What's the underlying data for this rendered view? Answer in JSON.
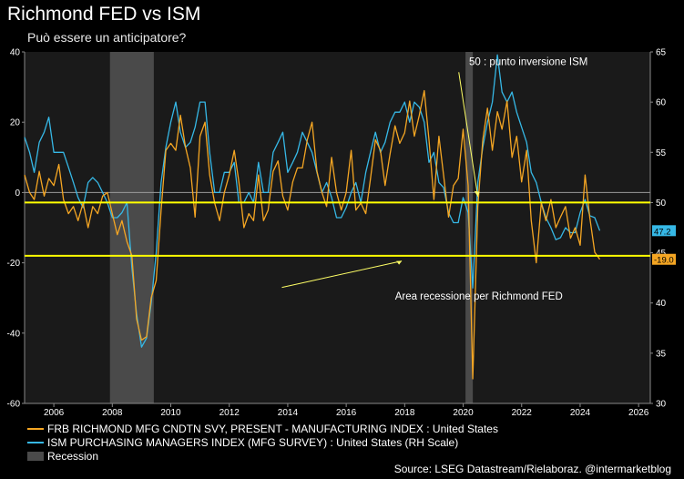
{
  "header": {
    "title": "Richmond FED vs ISM",
    "subtitle": "Può essere un anticipatore?"
  },
  "source": "Source: LSEG Datastream/Rielaboraz. @intermarketblog",
  "colors": {
    "background": "#000000",
    "plot_background": "#1a1a1a",
    "richmond": "#f5a623",
    "ism": "#36b8e6",
    "recession": "#4a4a4a",
    "reference_lines": "#ffff00",
    "grid": "#3a3a3a"
  },
  "chart_data": {
    "type": "line",
    "title": "Richmond FED vs ISM",
    "x_range": [
      2005,
      2026.4
    ],
    "x_ticks": [
      "2006",
      "2008",
      "2010",
      "2012",
      "2014",
      "2016",
      "2018",
      "2020",
      "2022",
      "2024",
      "2026"
    ],
    "y_left": {
      "range": [
        -60,
        40
      ],
      "ticks": [
        "40",
        "20",
        "0",
        "-20",
        "-40",
        "-60"
      ]
    },
    "y_right": {
      "range": [
        30,
        65
      ],
      "ticks": [
        "65",
        "60",
        "55",
        "50",
        "45",
        "40",
        "35",
        "30"
      ],
      "scale": "RH"
    },
    "grid": false,
    "legend_position": "bottom",
    "series": [
      {
        "name": "FRB RICHMOND MFG CNDTN SVY, PRESENT - MANUFACTURING INDEX : United States",
        "axis": "left",
        "last_value_label": "-19.0",
        "points": [
          [
            2005.0,
            5
          ],
          [
            2005.17,
            0
          ],
          [
            2005.33,
            -2
          ],
          [
            2005.5,
            6
          ],
          [
            2005.67,
            -1
          ],
          [
            2005.83,
            4
          ],
          [
            2006.0,
            2
          ],
          [
            2006.17,
            8
          ],
          [
            2006.33,
            -2
          ],
          [
            2006.5,
            -6
          ],
          [
            2006.67,
            -4
          ],
          [
            2006.83,
            -8
          ],
          [
            2007.0,
            -3
          ],
          [
            2007.17,
            -10
          ],
          [
            2007.33,
            -4
          ],
          [
            2007.5,
            -6
          ],
          [
            2007.67,
            -1
          ],
          [
            2007.83,
            0
          ],
          [
            2008.0,
            -6
          ],
          [
            2008.17,
            -12
          ],
          [
            2008.33,
            -8
          ],
          [
            2008.5,
            -14
          ],
          [
            2008.67,
            -18
          ],
          [
            2008.83,
            -36
          ],
          [
            2009.0,
            -42
          ],
          [
            2009.17,
            -41
          ],
          [
            2009.33,
            -30
          ],
          [
            2009.5,
            -25
          ],
          [
            2009.67,
            -5
          ],
          [
            2009.83,
            12
          ],
          [
            2010.0,
            14
          ],
          [
            2010.17,
            12
          ],
          [
            2010.33,
            22
          ],
          [
            2010.5,
            13
          ],
          [
            2010.67,
            7
          ],
          [
            2010.83,
            -7
          ],
          [
            2011.0,
            16
          ],
          [
            2011.17,
            20
          ],
          [
            2011.33,
            5
          ],
          [
            2011.5,
            -3
          ],
          [
            2011.67,
            -8
          ],
          [
            2011.83,
            0
          ],
          [
            2012.0,
            5
          ],
          [
            2012.17,
            12
          ],
          [
            2012.33,
            3
          ],
          [
            2012.5,
            -10
          ],
          [
            2012.67,
            -6
          ],
          [
            2012.83,
            -8
          ],
          [
            2013.0,
            5
          ],
          [
            2013.17,
            -8
          ],
          [
            2013.33,
            -5
          ],
          [
            2013.5,
            6
          ],
          [
            2013.67,
            9
          ],
          [
            2013.83,
            -1
          ],
          [
            2014.0,
            -5
          ],
          [
            2014.17,
            3
          ],
          [
            2014.33,
            7
          ],
          [
            2014.5,
            7
          ],
          [
            2014.67,
            15
          ],
          [
            2014.83,
            20
          ],
          [
            2015.0,
            6
          ],
          [
            2015.17,
            0
          ],
          [
            2015.33,
            -4
          ],
          [
            2015.5,
            10
          ],
          [
            2015.67,
            0
          ],
          [
            2015.83,
            -5
          ],
          [
            2016.0,
            0
          ],
          [
            2016.17,
            12
          ],
          [
            2016.33,
            -5
          ],
          [
            2016.5,
            -3
          ],
          [
            2016.67,
            -6
          ],
          [
            2016.83,
            4
          ],
          [
            2017.0,
            15
          ],
          [
            2017.17,
            12
          ],
          [
            2017.33,
            2
          ],
          [
            2017.5,
            11
          ],
          [
            2017.67,
            19
          ],
          [
            2017.83,
            14
          ],
          [
            2018.0,
            17
          ],
          [
            2018.17,
            26
          ],
          [
            2018.33,
            16
          ],
          [
            2018.5,
            22
          ],
          [
            2018.67,
            29
          ],
          [
            2018.83,
            15
          ],
          [
            2019.0,
            -2
          ],
          [
            2019.17,
            16
          ],
          [
            2019.33,
            5
          ],
          [
            2019.5,
            -7
          ],
          [
            2019.67,
            2
          ],
          [
            2019.83,
            4
          ],
          [
            2020.0,
            18
          ],
          [
            2020.17,
            2
          ],
          [
            2020.33,
            -53
          ],
          [
            2020.5,
            -4
          ],
          [
            2020.67,
            15
          ],
          [
            2020.83,
            24
          ],
          [
            2021.0,
            12
          ],
          [
            2021.17,
            23
          ],
          [
            2021.33,
            18
          ],
          [
            2021.5,
            26
          ],
          [
            2021.67,
            10
          ],
          [
            2021.83,
            16
          ],
          [
            2022.0,
            3
          ],
          [
            2022.17,
            12
          ],
          [
            2022.33,
            -8
          ],
          [
            2022.5,
            -20
          ],
          [
            2022.67,
            -3
          ],
          [
            2022.83,
            -8
          ],
          [
            2023.0,
            -2
          ],
          [
            2023.17,
            -10
          ],
          [
            2023.33,
            -7
          ],
          [
            2023.5,
            -4
          ],
          [
            2023.67,
            -13
          ],
          [
            2023.83,
            -10
          ],
          [
            2024.0,
            -15
          ],
          [
            2024.17,
            5
          ],
          [
            2024.33,
            -7
          ],
          [
            2024.5,
            -17
          ],
          [
            2024.67,
            -19
          ]
        ]
      },
      {
        "name": "ISM PURCHASING MANAGERS INDEX (MFG SURVEY) : United States (RH Scale)",
        "axis": "right",
        "last_value_label": "47.2",
        "points": [
          [
            2005.0,
            56.5
          ],
          [
            2005.17,
            55
          ],
          [
            2005.33,
            53
          ],
          [
            2005.5,
            56
          ],
          [
            2005.67,
            57
          ],
          [
            2005.83,
            58.5
          ],
          [
            2006.0,
            55
          ],
          [
            2006.17,
            55
          ],
          [
            2006.33,
            55
          ],
          [
            2006.5,
            53.5
          ],
          [
            2006.67,
            52
          ],
          [
            2006.83,
            50.5
          ],
          [
            2007.0,
            49.5
          ],
          [
            2007.17,
            52
          ],
          [
            2007.33,
            52.5
          ],
          [
            2007.5,
            52
          ],
          [
            2007.67,
            51
          ],
          [
            2007.83,
            50
          ],
          [
            2008.0,
            48.5
          ],
          [
            2008.17,
            48.5
          ],
          [
            2008.33,
            49
          ],
          [
            2008.5,
            50
          ],
          [
            2008.67,
            43.5
          ],
          [
            2008.83,
            38.9
          ],
          [
            2009.0,
            35.6
          ],
          [
            2009.17,
            36.5
          ],
          [
            2009.33,
            40
          ],
          [
            2009.5,
            45
          ],
          [
            2009.67,
            52
          ],
          [
            2009.83,
            55.5
          ],
          [
            2010.0,
            58
          ],
          [
            2010.17,
            60
          ],
          [
            2010.33,
            57
          ],
          [
            2010.5,
            55.5
          ],
          [
            2010.67,
            56
          ],
          [
            2010.83,
            57.5
          ],
          [
            2011.0,
            60
          ],
          [
            2011.17,
            60
          ],
          [
            2011.33,
            55
          ],
          [
            2011.5,
            51
          ],
          [
            2011.67,
            51
          ],
          [
            2011.83,
            53
          ],
          [
            2012.0,
            53
          ],
          [
            2012.17,
            54
          ],
          [
            2012.33,
            50
          ],
          [
            2012.5,
            50
          ],
          [
            2012.67,
            51
          ],
          [
            2012.83,
            50
          ],
          [
            2013.0,
            54
          ],
          [
            2013.17,
            51
          ],
          [
            2013.33,
            51
          ],
          [
            2013.5,
            55
          ],
          [
            2013.67,
            56
          ],
          [
            2013.83,
            57
          ],
          [
            2014.0,
            53
          ],
          [
            2014.17,
            54
          ],
          [
            2014.33,
            55
          ],
          [
            2014.5,
            57
          ],
          [
            2014.67,
            56
          ],
          [
            2014.83,
            55
          ],
          [
            2015.0,
            53
          ],
          [
            2015.17,
            51
          ],
          [
            2015.33,
            52
          ],
          [
            2015.5,
            50.5
          ],
          [
            2015.67,
            48.5
          ],
          [
            2015.83,
            48.5
          ],
          [
            2016.0,
            49.5
          ],
          [
            2016.17,
            51
          ],
          [
            2016.33,
            52
          ],
          [
            2016.5,
            50
          ],
          [
            2016.67,
            53
          ],
          [
            2016.83,
            55
          ],
          [
            2017.0,
            57
          ],
          [
            2017.17,
            55
          ],
          [
            2017.33,
            56
          ],
          [
            2017.5,
            58
          ],
          [
            2017.67,
            59
          ],
          [
            2017.83,
            59
          ],
          [
            2018.0,
            60
          ],
          [
            2018.17,
            58
          ],
          [
            2018.33,
            60
          ],
          [
            2018.5,
            59.5
          ],
          [
            2018.67,
            58
          ],
          [
            2018.83,
            54
          ],
          [
            2019.0,
            55
          ],
          [
            2019.17,
            52
          ],
          [
            2019.33,
            51.5
          ],
          [
            2019.5,
            49
          ],
          [
            2019.67,
            48
          ],
          [
            2019.83,
            48
          ],
          [
            2020.0,
            50.5
          ],
          [
            2020.17,
            49
          ],
          [
            2020.33,
            41.5
          ],
          [
            2020.5,
            52
          ],
          [
            2020.67,
            55.5
          ],
          [
            2020.83,
            58
          ],
          [
            2021.0,
            60
          ],
          [
            2021.17,
            64.7
          ],
          [
            2021.33,
            61
          ],
          [
            2021.5,
            60
          ],
          [
            2021.67,
            61
          ],
          [
            2021.83,
            59
          ],
          [
            2022.0,
            57.5
          ],
          [
            2022.17,
            56
          ],
          [
            2022.33,
            53
          ],
          [
            2022.5,
            52
          ],
          [
            2022.67,
            50
          ],
          [
            2022.83,
            48.5
          ],
          [
            2023.0,
            47.5
          ],
          [
            2023.17,
            46.3
          ],
          [
            2023.33,
            46.5
          ],
          [
            2023.5,
            47.5
          ],
          [
            2023.67,
            47
          ],
          [
            2023.83,
            47
          ],
          [
            2024.0,
            49
          ],
          [
            2024.17,
            50.3
          ],
          [
            2024.33,
            48.7
          ],
          [
            2024.5,
            48.5
          ],
          [
            2024.67,
            47.2
          ]
        ]
      }
    ],
    "recessions": [
      [
        2007.92,
        2009.42
      ],
      [
        2020.08,
        2020.33
      ]
    ],
    "recession_label": "Recession",
    "reference_lines": [
      {
        "axis": "right",
        "value": 50
      },
      {
        "axis": "left",
        "value": -18
      }
    ],
    "annotations": [
      {
        "text": "50 : punto inversione ISM",
        "anchor_x": 2020.2,
        "anchor_y_right": 63.7
      },
      {
        "text": "Area recessione per Richmond FED",
        "anchor_x": 2019.6,
        "anchor_y_left": -30.5
      }
    ]
  }
}
